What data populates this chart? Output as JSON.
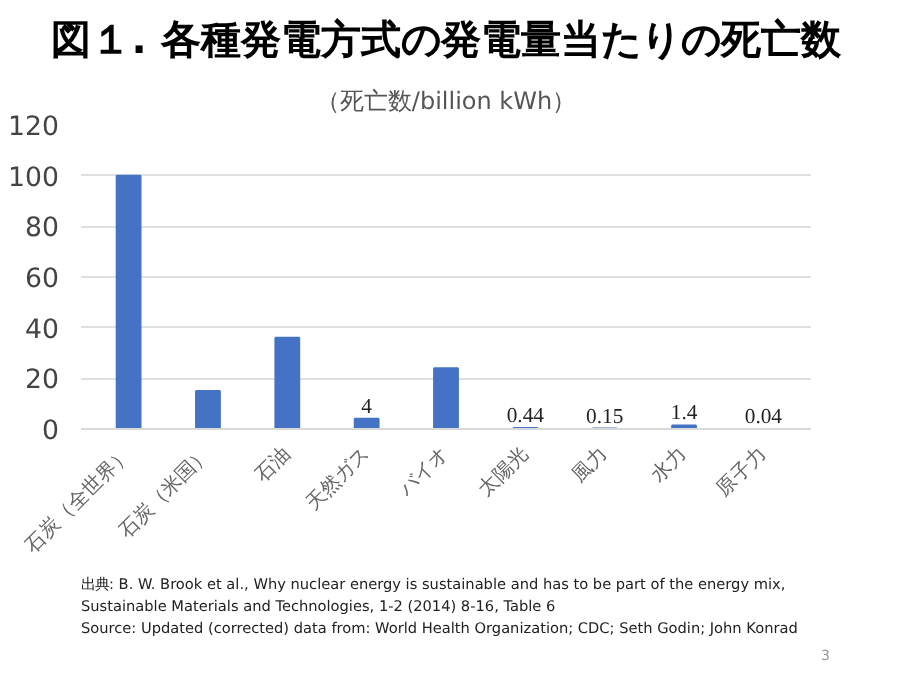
{
  "chart_data": {
    "type": "bar",
    "title": "図１. 各種発電方式の発電量当たりの死亡数",
    "subtitle": "（死亡数/billion kWh）",
    "categories": [
      "石炭（全世界）",
      "石炭（米国）",
      "石油",
      "天然ガス",
      "バイオ",
      "太陽光",
      "風力",
      "水力",
      "原子力"
    ],
    "values": [
      100,
      15,
      36,
      4,
      24,
      0.44,
      0.15,
      1.4,
      0.04
    ],
    "value_labels": [
      null,
      null,
      null,
      "4",
      null,
      "0.44",
      "0.15",
      "1.4",
      "0.04"
    ],
    "color": "#4472c4",
    "ylim": [
      0,
      120
    ],
    "yticks": [
      0,
      20,
      40,
      60,
      80,
      100,
      120
    ],
    "grid": "y",
    "annotations": [
      "出典: B. W. Brook et al., Why nuclear energy is sustainable and has to be part of the energy mix,",
      "Sustainable Materials and Technologies, 1-2 (2014) 8-16, Table 6",
      "Source: Updated (corrected) data from: World Health Organization; CDC; Seth Godin; John Konrad",
      "3"
    ]
  }
}
